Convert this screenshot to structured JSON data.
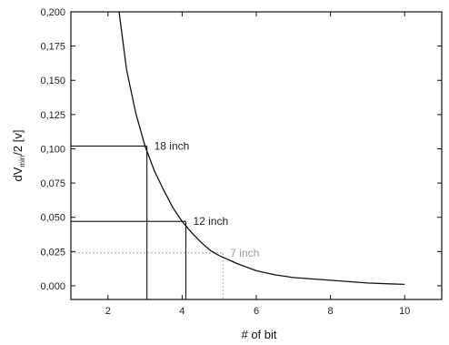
{
  "chart_data": {
    "type": "line",
    "xlabel": "# of bit",
    "ylabel": {
      "main": "dV",
      "sub": "min",
      "rest": "/2 [v]"
    },
    "xlim": [
      1.0,
      11.0
    ],
    "ylim": [
      -0.01,
      0.2
    ],
    "x_ticks": [
      2,
      4,
      6,
      8,
      10
    ],
    "y_ticks": [
      0.0,
      0.025,
      0.05,
      0.075,
      0.1,
      0.125,
      0.15,
      0.175,
      0.2
    ],
    "y_tick_labels": [
      "0,000",
      "0,025",
      "0,050",
      "0,075",
      "0,100",
      "0,125",
      "0,150",
      "0,175",
      "0,200"
    ],
    "grid": false,
    "series": [
      {
        "x": [
          2.3,
          2.5,
          2.75,
          3.0,
          3.25,
          3.5,
          3.75,
          4.0,
          4.25,
          4.5,
          4.75,
          5.0,
          5.5,
          6.0,
          6.5,
          7.0,
          7.5,
          8.0,
          8.5,
          9.0,
          9.5,
          10.0
        ],
        "y": [
          0.2,
          0.158,
          0.126,
          0.102,
          0.084,
          0.07,
          0.057,
          0.047,
          0.039,
          0.032,
          0.026,
          0.022,
          0.016,
          0.011,
          0.008,
          0.006,
          0.005,
          0.004,
          0.003,
          0.002,
          0.0015,
          0.001
        ]
      }
    ],
    "annotations": [
      {
        "label": "18 inch",
        "x": 3.05,
        "y": 0.102,
        "color": "#111111",
        "style": "solid"
      },
      {
        "label": "12 inch",
        "x": 4.1,
        "y": 0.047,
        "color": "#111111",
        "style": "solid"
      },
      {
        "label": "7 inch",
        "x": 5.1,
        "y": 0.024,
        "color": "#999999",
        "style": "dotted"
      }
    ]
  }
}
